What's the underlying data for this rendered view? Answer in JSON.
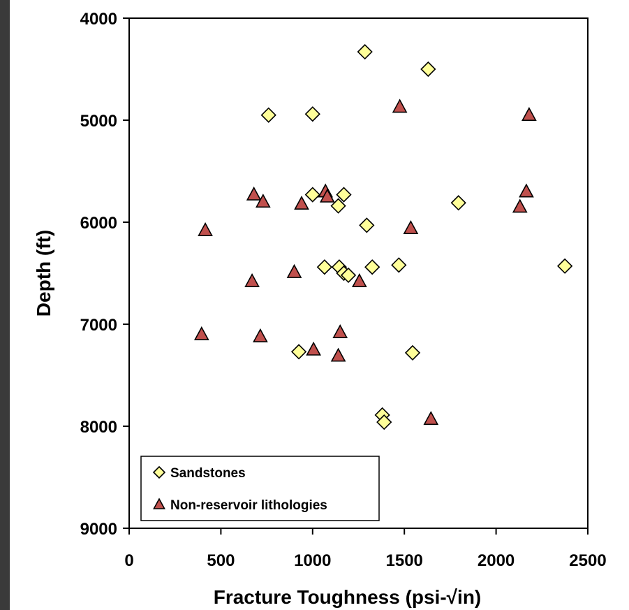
{
  "chart_data": {
    "type": "scatter",
    "title": "",
    "xlabel": "Fracture Toughness (psi-√in)",
    "ylabel": "Depth (ft)",
    "xlim": [
      0,
      2500
    ],
    "ylim": [
      4000,
      9000
    ],
    "y_inverted": true,
    "x_ticks": [
      "0",
      "500",
      "1000",
      "1500",
      "2000",
      "2500"
    ],
    "y_ticks": [
      "4000",
      "5000",
      "6000",
      "7000",
      "8000",
      "9000"
    ],
    "grid": false,
    "legend_position": "bottom-left",
    "series": [
      {
        "name": "Sandstones",
        "marker": "diamond",
        "color": "#ffff99",
        "x": [
          1285,
          1630,
          760,
          1000,
          1000,
          1170,
          1140,
          1795,
          1295,
          1065,
          1145,
          1170,
          1195,
          1325,
          1470,
          2375,
          925,
          1545,
          1380,
          1390
        ],
        "y": [
          4330,
          4500,
          4950,
          4940,
          5730,
          5730,
          5840,
          5810,
          6030,
          6440,
          6440,
          6500,
          6520,
          6440,
          6420,
          6430,
          7270,
          7280,
          7890,
          7960
        ]
      },
      {
        "name": "Non-reservoir lithologies",
        "marker": "triangle",
        "color": "#c0504d",
        "x": [
          1475,
          2180,
          680,
          730,
          940,
          1070,
          1080,
          2165,
          2130,
          415,
          1535,
          670,
          900,
          1255,
          395,
          715,
          1005,
          1150,
          1140,
          1645
        ],
        "y": [
          4870,
          4950,
          5730,
          5800,
          5820,
          5700,
          5750,
          5700,
          5850,
          6080,
          6060,
          6580,
          6490,
          6580,
          7100,
          7120,
          7250,
          7080,
          7310,
          7930
        ]
      }
    ]
  }
}
